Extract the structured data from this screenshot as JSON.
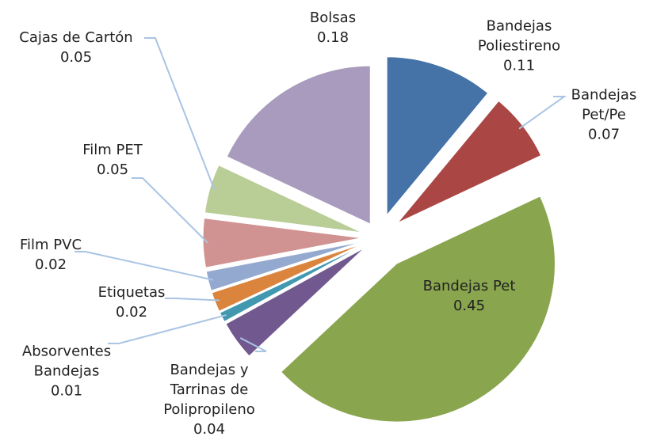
{
  "chart_data": {
    "type": "pie",
    "categories": [
      "Bandejas Poliestireno",
      "Bandejas Pet/Pe",
      "Bandejas Pet",
      "Bandejas y Tarrinas de Polipropileno",
      "Absorventes Bandejas",
      "Etiquetas",
      "Film PVC",
      "Film PET",
      "Cajas de Cartón",
      "Bolsas"
    ],
    "values": [
      0.11,
      0.07,
      0.45,
      0.04,
      0.01,
      0.02,
      0.02,
      0.05,
      0.05,
      0.18
    ],
    "colors": [
      "#4572a7",
      "#aa4643",
      "#89a54e",
      "#71588f",
      "#4198af",
      "#db843d",
      "#93a9cf",
      "#d19392",
      "#b9cd96",
      "#a99bbd"
    ]
  }
}
